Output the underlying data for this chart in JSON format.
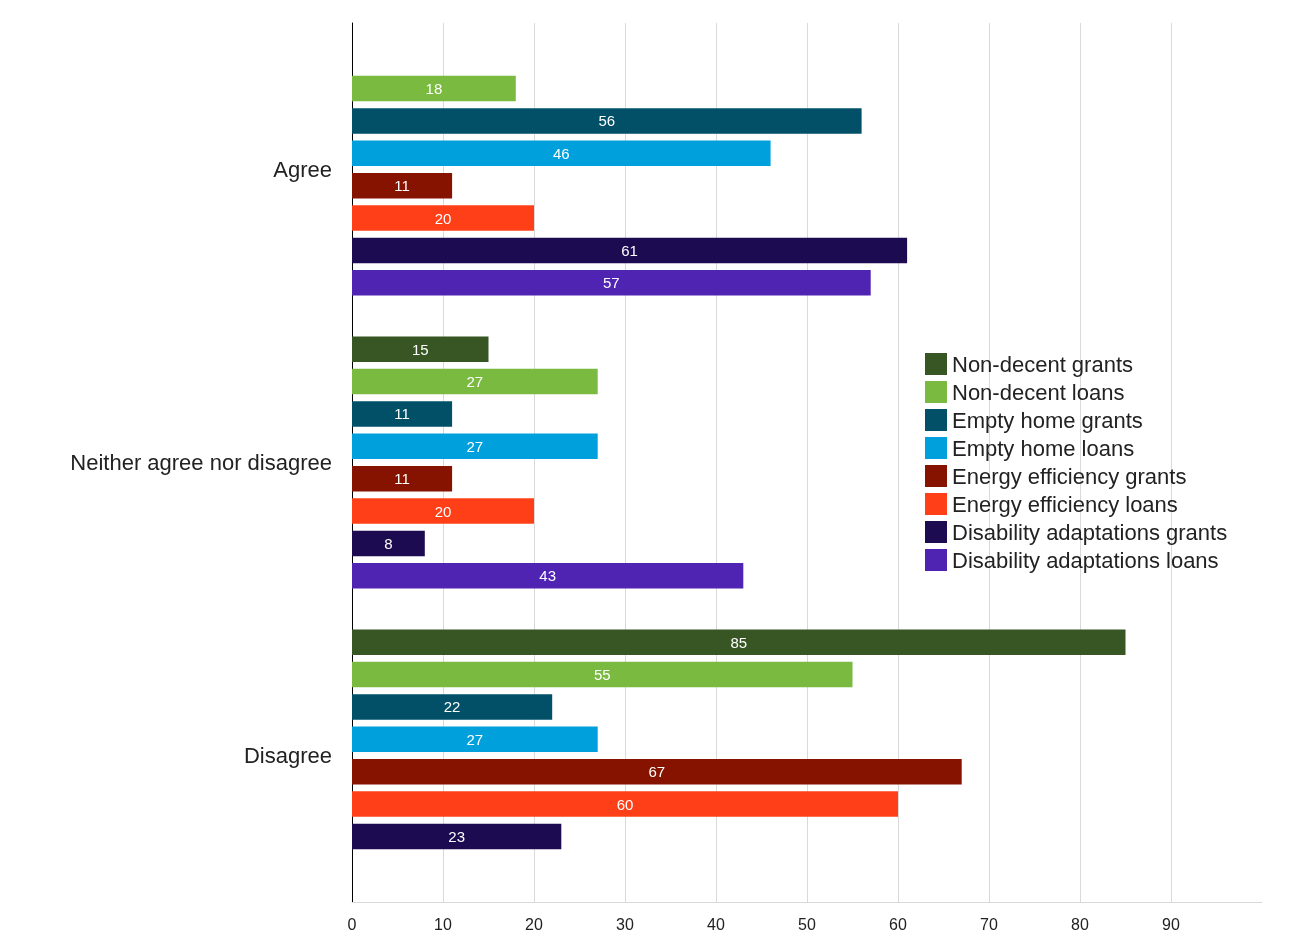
{
  "chart_data": {
    "type": "bar",
    "orientation": "horizontal",
    "categories": [
      "Agree",
      "Neither agree nor disagree",
      "Disagree"
    ],
    "series": [
      {
        "name": "Non-decent grants",
        "color": "#375623",
        "values": [
          null,
          15,
          85
        ]
      },
      {
        "name": "Non-decent loans",
        "color": "#7aba40",
        "values": [
          18,
          27,
          55
        ]
      },
      {
        "name": "Empty home grants",
        "color": "#024f68",
        "values": [
          56,
          11,
          22
        ]
      },
      {
        "name": "Empty home loans",
        "color": "#00a0dc",
        "values": [
          46,
          27,
          27
        ]
      },
      {
        "name": "Energy efficiency grants",
        "color": "#851300",
        "values": [
          11,
          11,
          67
        ]
      },
      {
        "name": "Energy efficiency loans",
        "color": "#ff3f17",
        "values": [
          20,
          20,
          60
        ]
      },
      {
        "name": "Disability adaptations grants",
        "color": "#1c0b50",
        "values": [
          61,
          8,
          23
        ]
      },
      {
        "name": "Disability adaptations loans",
        "color": "#4f24b2",
        "values": [
          57,
          43,
          null
        ]
      }
    ],
    "xlim": [
      0,
      100
    ],
    "xticks": [
      0,
      10,
      20,
      30,
      40,
      50,
      60,
      70,
      80,
      90
    ],
    "grid": "x",
    "legend": "right",
    "data_labels": true
  }
}
